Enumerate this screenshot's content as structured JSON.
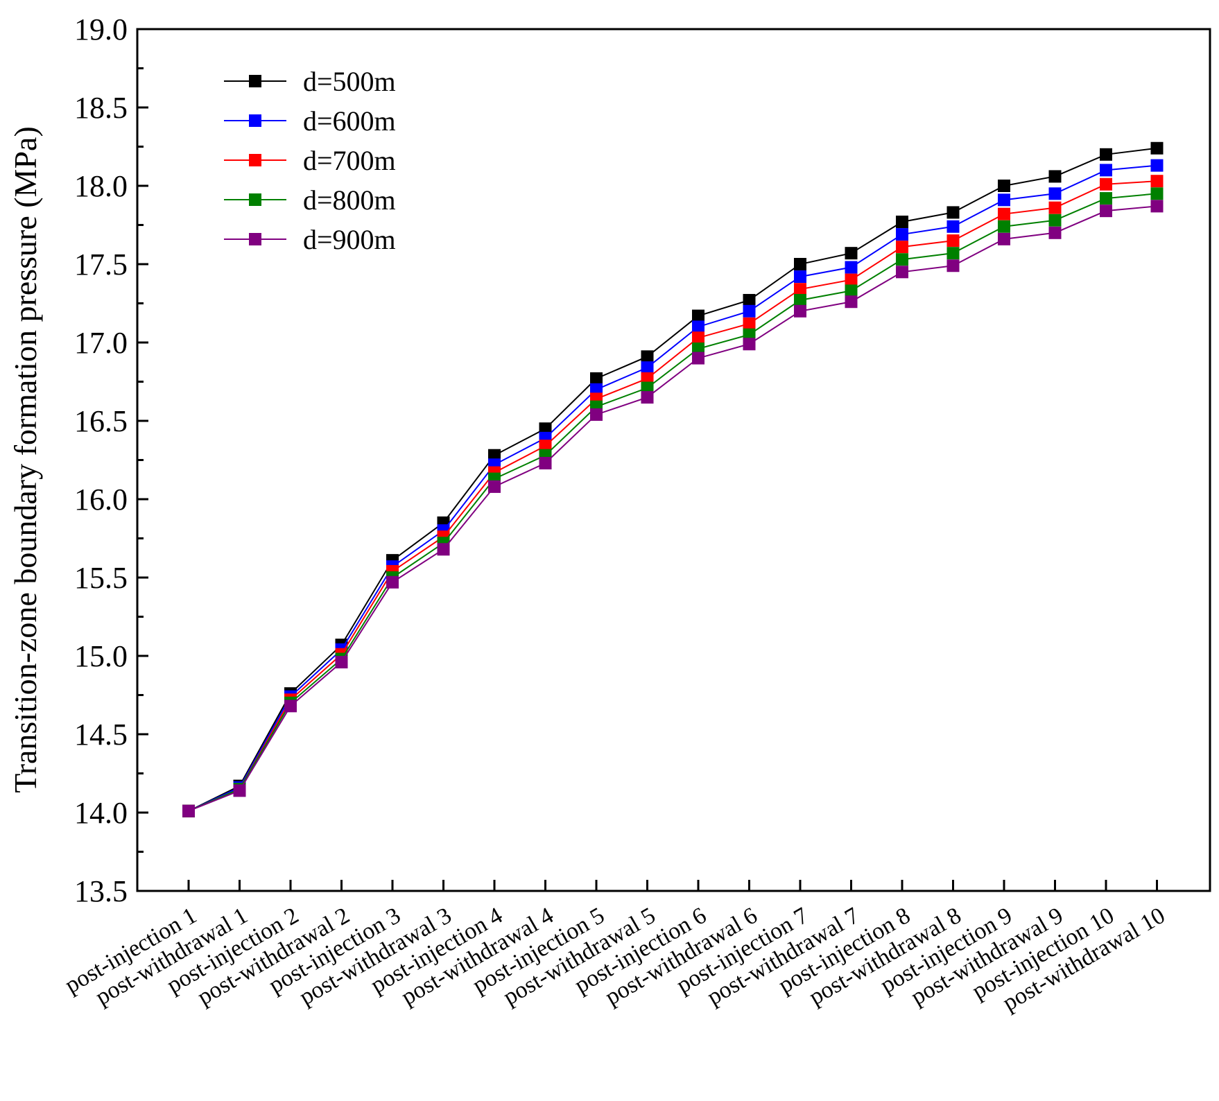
{
  "chart_data": {
    "type": "line",
    "title": "",
    "xlabel": "",
    "ylabel": "Transition-zone boundary formation pressure (MPa)",
    "ylim": [
      13.5,
      19.0
    ],
    "yticks": [
      "13.5",
      "14.0",
      "14.5",
      "15.0",
      "15.5",
      "16.0",
      "16.5",
      "17.0",
      "17.5",
      "18.0",
      "18.5",
      "19.0"
    ],
    "grid": false,
    "legend_position": "top-left",
    "categories": [
      "post-injection 1",
      "post-withdrawal 1",
      "post-injection 2",
      "post-withdrawal 2",
      "post-injection 3",
      "post-withdrawal 3",
      "post-injection 4",
      "post-withdrawal 4",
      "post-injection 5",
      "post-withdrawal 5",
      "post-injection 6",
      "post-withdrawal 6",
      "post-injection 7",
      "post-withdrawal 7",
      "post-injection 8",
      "post-withdrawal 8",
      "post-injection 9",
      "post-withdrawal 9",
      "post-injection 10",
      "post-withdrawal 10"
    ],
    "series": [
      {
        "name": "d=500m",
        "color": "#000000",
        "values": [
          14.01,
          14.17,
          14.76,
          15.07,
          15.61,
          15.85,
          16.28,
          16.45,
          16.77,
          16.91,
          17.17,
          17.27,
          17.5,
          17.57,
          17.77,
          17.83,
          18.0,
          18.06,
          18.2,
          18.24
        ]
      },
      {
        "name": "d=600m",
        "color": "#0000ff",
        "values": [
          14.01,
          14.16,
          14.74,
          15.04,
          15.57,
          15.8,
          16.22,
          16.39,
          16.7,
          16.84,
          17.1,
          17.2,
          17.42,
          17.48,
          17.69,
          17.74,
          17.91,
          17.95,
          18.1,
          18.13
        ]
      },
      {
        "name": "d=700m",
        "color": "#ff0000",
        "values": [
          14.01,
          14.15,
          14.72,
          15.01,
          15.54,
          15.76,
          16.17,
          16.34,
          16.64,
          16.77,
          17.03,
          17.12,
          17.34,
          17.4,
          17.61,
          17.65,
          17.82,
          17.86,
          18.01,
          18.03
        ]
      },
      {
        "name": "d=800m",
        "color": "#008000",
        "values": [
          14.01,
          14.15,
          14.7,
          14.98,
          15.5,
          15.72,
          16.13,
          16.28,
          16.59,
          16.71,
          16.96,
          17.05,
          17.27,
          17.33,
          17.53,
          17.57,
          17.74,
          17.78,
          17.92,
          17.95
        ]
      },
      {
        "name": "d=900m",
        "color": "#800080",
        "values": [
          14.01,
          14.14,
          14.68,
          14.96,
          15.47,
          15.68,
          16.08,
          16.23,
          16.54,
          16.65,
          16.9,
          16.99,
          17.2,
          17.26,
          17.45,
          17.49,
          17.66,
          17.7,
          17.84,
          17.87
        ]
      }
    ]
  }
}
